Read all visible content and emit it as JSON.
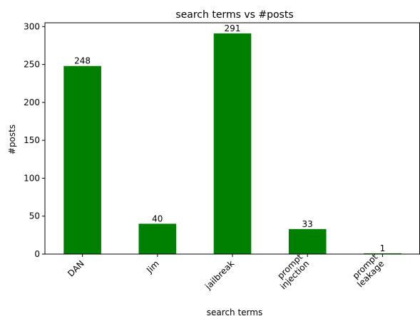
{
  "chart_data": {
    "type": "bar",
    "title": "search terms vs #posts",
    "xlabel": "search terms",
    "ylabel": "#posts",
    "categories": [
      [
        "DAN"
      ],
      [
        "Jim"
      ],
      [
        "jailbreak"
      ],
      [
        "prompt",
        "injection"
      ],
      [
        "prompt",
        "leakage"
      ]
    ],
    "values": [
      248,
      40,
      291,
      33,
      1
    ],
    "data_labels": [
      "248",
      "40",
      "291",
      "33",
      "1"
    ],
    "ylim": [
      0,
      305
    ],
    "yticks": [
      0,
      50,
      100,
      150,
      200,
      250,
      300
    ],
    "grid": false,
    "bar_color": "#008000",
    "tick_rotation": 45
  }
}
